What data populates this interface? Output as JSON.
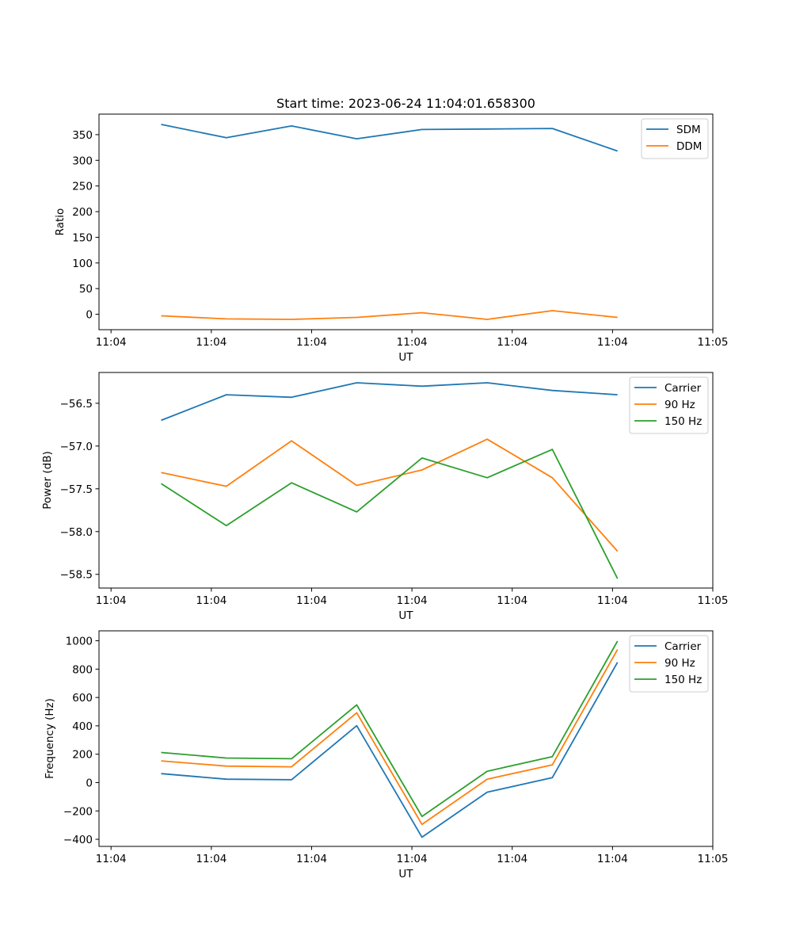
{
  "figure_title": "Start time: 2023-06-24 11:04:01.658300",
  "chart_data": [
    {
      "type": "line",
      "ylabel": "Ratio",
      "xlabel": "UT",
      "x_ticks": [
        "11:04",
        "11:04",
        "11:04",
        "11:04",
        "11:04",
        "11:04",
        "11:05"
      ],
      "x_tick_positions": [
        0,
        1,
        2,
        3,
        4,
        5,
        6
      ],
      "xlim": [
        -0.12,
        6.0
      ],
      "x": [
        0.5,
        1.15,
        1.8,
        2.45,
        3.1,
        3.75,
        4.4,
        5.05
      ],
      "ylim": [
        -30,
        390
      ],
      "y_ticks": [
        "0",
        "50",
        "100",
        "150",
        "200",
        "250",
        "300",
        "350"
      ],
      "y_tick_values": [
        0,
        50,
        100,
        150,
        200,
        250,
        300,
        350
      ],
      "legend_position": "top-right",
      "series": [
        {
          "name": "SDM",
          "color": "#1f77b4",
          "values": [
            370,
            344,
            367,
            342,
            360,
            361,
            362,
            318
          ]
        },
        {
          "name": "DDM",
          "color": "#ff7f0e",
          "values": [
            -3,
            -9,
            -10,
            -6,
            3,
            -10,
            7,
            -6
          ]
        }
      ]
    },
    {
      "type": "line",
      "ylabel": "Power (dB)",
      "xlabel": "UT",
      "x_ticks": [
        "11:04",
        "11:04",
        "11:04",
        "11:04",
        "11:04",
        "11:04",
        "11:05"
      ],
      "x_tick_positions": [
        0,
        1,
        2,
        3,
        4,
        5,
        6
      ],
      "xlim": [
        -0.12,
        6.0
      ],
      "x": [
        0.5,
        1.15,
        1.8,
        2.45,
        3.1,
        3.75,
        4.4,
        5.05
      ],
      "ylim": [
        -58.66,
        -56.14
      ],
      "y_ticks": [
        "−58.5",
        "−58.0",
        "−57.5",
        "−57.0",
        "−56.5"
      ],
      "y_tick_values": [
        -58.5,
        -58.0,
        -57.5,
        -57.0,
        -56.5
      ],
      "legend_position": "top-right",
      "series": [
        {
          "name": "Carrier",
          "color": "#1f77b4",
          "values": [
            -56.7,
            -56.4,
            -56.43,
            -56.26,
            -56.3,
            -56.26,
            -56.35,
            -56.4
          ]
        },
        {
          "name": "90 Hz",
          "color": "#ff7f0e",
          "values": [
            -57.31,
            -57.47,
            -56.94,
            -57.46,
            -57.28,
            -56.92,
            -57.37,
            -58.23
          ]
        },
        {
          "name": "150 Hz",
          "color": "#2ca02c",
          "values": [
            -57.44,
            -57.93,
            -57.43,
            -57.77,
            -57.14,
            -57.37,
            -57.04,
            -58.55
          ]
        }
      ]
    },
    {
      "type": "line",
      "ylabel": "Frequency (Hz)",
      "xlabel": "UT",
      "x_ticks": [
        "11:04",
        "11:04",
        "11:04",
        "11:04",
        "11:04",
        "11:04",
        "11:05"
      ],
      "x_tick_positions": [
        0,
        1,
        2,
        3,
        4,
        5,
        6
      ],
      "xlim": [
        -0.12,
        6.0
      ],
      "x": [
        0.5,
        1.15,
        1.8,
        2.45,
        3.1,
        3.75,
        4.4,
        5.05
      ],
      "ylim": [
        -450,
        1070
      ],
      "y_ticks": [
        "−400",
        "−200",
        "0",
        "200",
        "400",
        "600",
        "800",
        "1000"
      ],
      "y_tick_values": [
        -400,
        -200,
        0,
        200,
        400,
        600,
        800,
        1000
      ],
      "legend_position": "top-right",
      "series": [
        {
          "name": "Carrier",
          "color": "#1f77b4",
          "values": [
            63,
            24,
            20,
            401,
            -385,
            -68,
            35,
            848
          ]
        },
        {
          "name": "90 Hz",
          "color": "#ff7f0e",
          "values": [
            153,
            116,
            111,
            492,
            -295,
            24,
            125,
            938
          ]
        },
        {
          "name": "150 Hz",
          "color": "#2ca02c",
          "values": [
            212,
            173,
            168,
            548,
            -239,
            80,
            183,
            998
          ]
        }
      ]
    }
  ]
}
